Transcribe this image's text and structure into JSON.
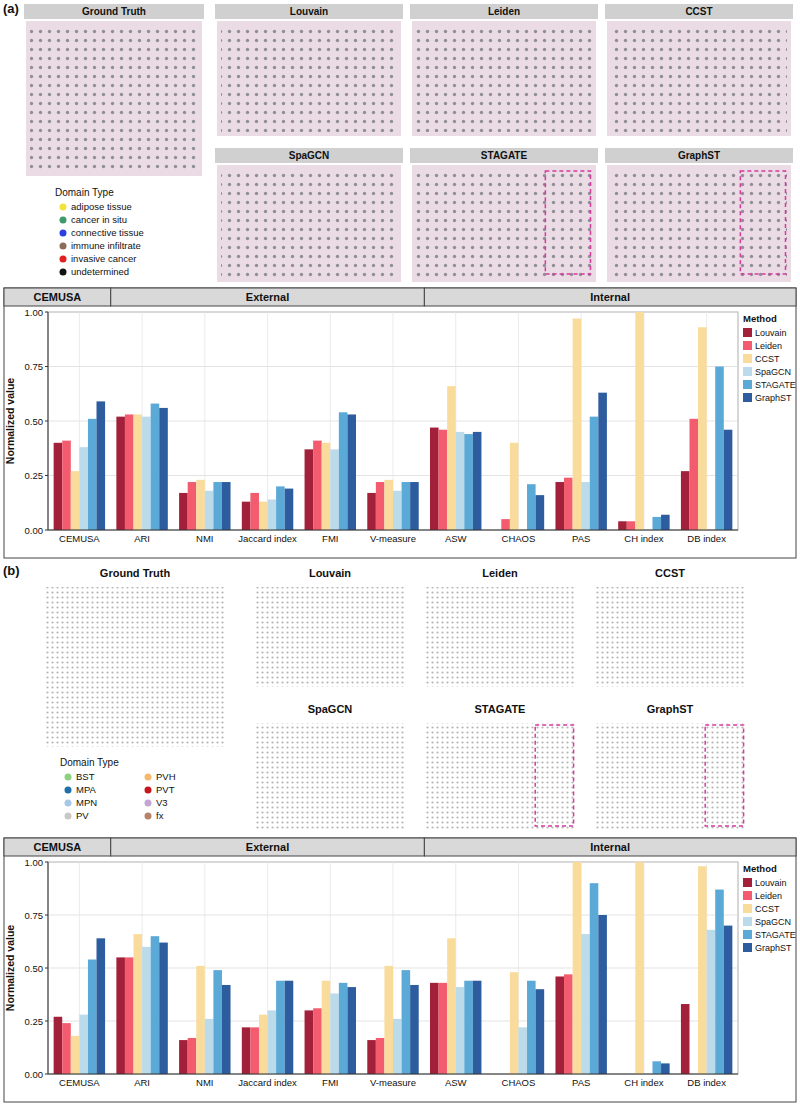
{
  "spatial_panels": [
    {
      "panel_label": "(a)",
      "titles": [
        "Ground Truth",
        "Louvain",
        "Leiden",
        "CCST",
        "SpaGCN",
        "STAGATE",
        "GraphST"
      ],
      "legend_title": "Domain Type",
      "domain_types": [
        {
          "name": "adipose tissue",
          "color": "#f2e33a"
        },
        {
          "name": "cancer in situ",
          "color": "#3e9a6b"
        },
        {
          "name": "connective tissue",
          "color": "#2a40e0"
        },
        {
          "name": "immune infiltrate",
          "color": "#8a6d5a"
        },
        {
          "name": "invasive cancer",
          "color": "#e02020"
        },
        {
          "name": "undetermined",
          "color": "#111111"
        }
      ]
    },
    {
      "panel_label": "(b)",
      "titles": [
        "Ground Truth",
        "Louvain",
        "Leiden",
        "CCST",
        "SpaGCN",
        "STAGATE",
        "GraphST"
      ],
      "legend_title": "Domain Type",
      "domain_types": [
        {
          "name": "BST",
          "color": "#8cd17d"
        },
        {
          "name": "MPA",
          "color": "#1f6fa8"
        },
        {
          "name": "MPN",
          "color": "#a6c8e6"
        },
        {
          "name": "PV",
          "color": "#c8c8c8"
        },
        {
          "name": "PVH",
          "color": "#f5b96b"
        },
        {
          "name": "PVT",
          "color": "#c8151b"
        },
        {
          "name": "V3",
          "color": "#c3a6d6"
        },
        {
          "name": "fx",
          "color": "#b5836b"
        }
      ]
    }
  ],
  "chart_data": [
    {
      "type": "bar",
      "y_label": "Normalized value",
      "legend_title": "Method",
      "groups": [
        {
          "name": "CEMUSA",
          "count": 1
        },
        {
          "name": "External",
          "count": 5
        },
        {
          "name": "Internal",
          "count": 5
        }
      ],
      "categories": [
        "CEMUSA",
        "ARI",
        "NMI",
        "Jaccard index",
        "FMI",
        "V-measure",
        "ASW",
        "CHAOS",
        "PAS",
        "CH index",
        "DB index"
      ],
      "series": [
        {
          "name": "Louvain",
          "color": "#a3203a",
          "values": [
            0.4,
            0.52,
            0.17,
            0.13,
            0.37,
            0.17,
            0.47,
            0,
            0.22,
            0.04,
            0.27
          ]
        },
        {
          "name": "Leiden",
          "color": "#f25c6e",
          "values": [
            0.41,
            0.53,
            0.22,
            0.17,
            0.41,
            0.22,
            0.46,
            0.05,
            0.24,
            0.04,
            0.51
          ]
        },
        {
          "name": "CCST",
          "color": "#f9dc9b",
          "values": [
            0.27,
            0.53,
            0.23,
            0.13,
            0.4,
            0.23,
            0.66,
            0.4,
            0.97,
            1.0,
            0.93
          ]
        },
        {
          "name": "SpaGCN",
          "color": "#bcdbea",
          "values": [
            0.38,
            0.52,
            0.18,
            0.14,
            0.37,
            0.18,
            0.45,
            0,
            0.22,
            0,
            0
          ]
        },
        {
          "name": "STAGATE",
          "color": "#5aa9d6",
          "values": [
            0.51,
            0.58,
            0.22,
            0.2,
            0.54,
            0.22,
            0.44,
            0.21,
            0.52,
            0.06,
            0.75
          ]
        },
        {
          "name": "GraphST",
          "color": "#2d5d9f",
          "values": [
            0.59,
            0.56,
            0.22,
            0.19,
            0.53,
            0.22,
            0.45,
            0.16,
            0.63,
            0.07,
            0.46
          ]
        }
      ],
      "ylim": [
        0,
        1
      ],
      "yticks": [
        {
          "value": 0,
          "label": "0.00"
        },
        {
          "value": 0.25,
          "label": "0.25"
        },
        {
          "value": 0.5,
          "label": "0.50"
        },
        {
          "value": 0.75,
          "label": "0.75"
        },
        {
          "value": 1,
          "label": "1.00"
        }
      ],
      "grid": true,
      "legend": "right"
    },
    {
      "type": "bar",
      "y_label": "Normalized value",
      "legend_title": "Method",
      "groups": [
        {
          "name": "CEMUSA",
          "count": 1
        },
        {
          "name": "External",
          "count": 5
        },
        {
          "name": "Internal",
          "count": 5
        }
      ],
      "categories": [
        "CEMUSA",
        "ARI",
        "NMI",
        "Jaccard index",
        "FMI",
        "V-measure",
        "ASW",
        "CHAOS",
        "PAS",
        "CH index",
        "DB index"
      ],
      "series": [
        {
          "name": "Louvain",
          "color": "#a3203a",
          "values": [
            0.27,
            0.55,
            0.16,
            0.22,
            0.3,
            0.16,
            0.43,
            0,
            0.46,
            0,
            0.33
          ]
        },
        {
          "name": "Leiden",
          "color": "#f25c6e",
          "values": [
            0.24,
            0.55,
            0.17,
            0.22,
            0.31,
            0.17,
            0.43,
            0,
            0.47,
            0,
            0
          ]
        },
        {
          "name": "CCST",
          "color": "#f9dc9b",
          "values": [
            0.18,
            0.66,
            0.51,
            0.28,
            0.44,
            0.51,
            0.64,
            0.48,
            1.0,
            1.0,
            0.98
          ]
        },
        {
          "name": "SpaGCN",
          "color": "#bcdbea",
          "values": [
            0.28,
            0.6,
            0.26,
            0.3,
            0.38,
            0.26,
            0.41,
            0.22,
            0.66,
            0,
            0.68
          ]
        },
        {
          "name": "STAGATE",
          "color": "#5aa9d6",
          "values": [
            0.54,
            0.65,
            0.49,
            0.44,
            0.43,
            0.49,
            0.44,
            0.44,
            0.9,
            0.06,
            0.87
          ]
        },
        {
          "name": "GraphST",
          "color": "#2d5d9f",
          "values": [
            0.64,
            0.62,
            0.42,
            0.44,
            0.41,
            0.42,
            0.44,
            0.4,
            0.75,
            0.05,
            0.7
          ]
        }
      ],
      "ylim": [
        0,
        1
      ],
      "yticks": [
        {
          "value": 0,
          "label": "0.00"
        },
        {
          "value": 0.25,
          "label": "0.25"
        },
        {
          "value": 0.5,
          "label": "0.50"
        },
        {
          "value": 0.75,
          "label": "0.75"
        },
        {
          "value": 1,
          "label": "1.00"
        }
      ],
      "grid": true,
      "legend": "right"
    }
  ]
}
